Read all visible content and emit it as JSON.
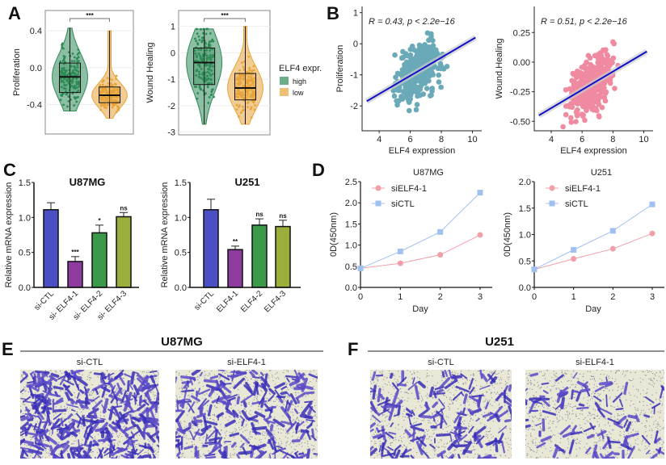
{
  "panel_labels": [
    "A",
    "B",
    "C",
    "D",
    "E",
    "F"
  ],
  "chart_data": [
    {
      "id": "A1",
      "type": "violin-box",
      "ylabel": "Proliferation",
      "yticks": [
        0.4,
        0.0,
        -0.4
      ],
      "ytick_labels": [
        "0.4",
        "0.0",
        "-0.4"
      ],
      "ylim": [
        -0.72,
        0.62
      ],
      "significance": "***",
      "groups": [
        {
          "name": "high",
          "color": "#2e8b57",
          "min": -0.47,
          "q1": -0.27,
          "median": -0.1,
          "q3": 0.05,
          "max": 0.43
        },
        {
          "name": "low",
          "color": "#e8a43a",
          "min": -0.55,
          "q1": -0.38,
          "median": -0.3,
          "q3": -0.21,
          "max": 0.4
        }
      ]
    },
    {
      "id": "A2",
      "type": "violin-box",
      "ylabel": "Wound Healing",
      "yticks": [
        1,
        0,
        -1,
        -2,
        -3
      ],
      "ytick_labels": [
        "1",
        "0",
        "-1",
        "-2",
        "-3"
      ],
      "ylim": [
        -3.1,
        1.6
      ],
      "significance": "***",
      "groups": [
        {
          "name": "high",
          "color": "#2e8b57",
          "min": -2.7,
          "q1": -1.2,
          "median": -0.37,
          "q3": 0.18,
          "max": 0.9
        },
        {
          "name": "low",
          "color": "#e8a43a",
          "min": -2.7,
          "q1": -1.78,
          "median": -1.33,
          "q3": -0.78,
          "max": 1.0
        }
      ],
      "legend": {
        "title": "ELF4 expr.",
        "entries": [
          "high",
          "low"
        ],
        "placement": "right"
      }
    },
    {
      "id": "B1",
      "type": "scatter",
      "xlabel": "ELF4 expression",
      "ylabel": "Proliferation",
      "annotation": "R = 0.43, p < 2.2e−16",
      "color": "#6aaab8",
      "xticks": [
        4,
        6,
        8,
        10
      ],
      "xtick_labels": [
        "4",
        "6",
        "8",
        "10"
      ],
      "yticks": [
        1,
        0,
        -1,
        -2
      ],
      "ytick_labels": [
        "1",
        "0",
        "-1",
        "-2"
      ],
      "xlim": [
        2.9,
        10.6
      ],
      "ylim": [
        -2.8,
        1.2
      ],
      "regression": {
        "x": [
          3.2,
          10.2
        ],
        "y": [
          -1.85,
          0.2
        ],
        "color": "#1010c8"
      }
    },
    {
      "id": "B2",
      "type": "scatter",
      "xlabel": "ELF4 expression",
      "ylabel": "Wound.Healing",
      "annotation": "R = 0.51, p < 2.2e−16",
      "color": "#f08aa0",
      "xticks": [
        4,
        6,
        8,
        10
      ],
      "xtick_labels": [
        "4",
        "6",
        "8",
        "10"
      ],
      "yticks": [
        0.25,
        0.0,
        -0.25,
        -0.5
      ],
      "ytick_labels": [
        "0.25",
        "0.00",
        "-0.25",
        "-0.50"
      ],
      "xlim": [
        2.9,
        10.6
      ],
      "ylim": [
        -0.58,
        0.47
      ],
      "regression": {
        "x": [
          3.2,
          10.2
        ],
        "y": [
          -0.45,
          0.09
        ],
        "color": "#1010c8"
      }
    },
    {
      "id": "C1",
      "type": "bar",
      "title": "U87MG",
      "ylabel": "Relative mRNA expression",
      "ylim": [
        0,
        1.5
      ],
      "yticks": [
        0,
        0.5,
        1.0,
        1.5
      ],
      "ytick_labels": [
        "0.0",
        "0.5",
        "1.0",
        "1.5"
      ],
      "categories": [
        "si-CTL",
        "si- ELF4-1",
        "si- ELF4-2",
        "si- ELF4-3"
      ],
      "values": [
        1.11,
        0.37,
        0.78,
        1.01
      ],
      "errors": [
        0.1,
        0.07,
        0.11,
        0.06
      ],
      "annotations": [
        "",
        "***",
        "*",
        "ns"
      ],
      "colors": [
        "#4b4fc4",
        "#8e3a9e",
        "#3a9a4a",
        "#9aae3c"
      ]
    },
    {
      "id": "C2",
      "type": "bar",
      "title": "U251",
      "ylabel": "Relative mRNA expression",
      "ylim": [
        0,
        1.5
      ],
      "yticks": [
        0,
        0.5,
        1.0,
        1.5
      ],
      "ytick_labels": [
        "0.0",
        "0.5",
        "1.0",
        "1.5"
      ],
      "categories": [
        "si-CTL",
        "ELF4-1",
        "ELF4-2",
        "ELF4-3"
      ],
      "values": [
        1.11,
        0.54,
        0.89,
        0.87
      ],
      "errors": [
        0.15,
        0.05,
        0.09,
        0.09
      ],
      "annotations": [
        "",
        "**",
        "ns",
        "ns"
      ],
      "colors": [
        "#4b4fc4",
        "#8e3a9e",
        "#3a9a4a",
        "#9aae3c"
      ]
    },
    {
      "id": "D1",
      "type": "line",
      "title": "U87MG",
      "xlabel": "Day",
      "ylabel": "0D(450nm)",
      "x": [
        0,
        1,
        2,
        3
      ],
      "xtick_labels": [
        "0",
        "1",
        "2",
        "3"
      ],
      "ylim": [
        0,
        2.5
      ],
      "yticks": [
        0,
        0.5,
        1.0,
        1.5,
        2.0,
        2.5
      ],
      "ytick_labels": [
        "0.0",
        "0.5",
        "1.0",
        "1.5",
        "2.0",
        "2.5"
      ],
      "series": [
        {
          "name": "siELF4-1",
          "marker": "circle",
          "color": "#f0a0a8",
          "values": [
            0.45,
            0.57,
            0.77,
            1.24
          ]
        },
        {
          "name": "siCTL",
          "marker": "square",
          "color": "#a0c0f0",
          "values": [
            0.45,
            0.85,
            1.31,
            2.24
          ]
        }
      ]
    },
    {
      "id": "D2",
      "type": "line",
      "title": "U251",
      "xlabel": "Day",
      "ylabel": "0D(450nm)",
      "x": [
        0,
        1,
        2,
        3
      ],
      "xtick_labels": [
        "0",
        "1",
        "2",
        "3"
      ],
      "ylim": [
        0,
        2.0
      ],
      "yticks": [
        0,
        0.5,
        1.0,
        1.5,
        2.0
      ],
      "ytick_labels": [
        "0.0",
        "0.5",
        "1.0",
        "1.5",
        "2.0"
      ],
      "series": [
        {
          "name": "siELF4-1",
          "marker": "circle",
          "color": "#f0a0a8",
          "values": [
            0.34,
            0.54,
            0.73,
            1.02
          ]
        },
        {
          "name": "siCTL",
          "marker": "square",
          "color": "#a0c0f0",
          "values": [
            0.34,
            0.71,
            1.07,
            1.57
          ]
        }
      ]
    }
  ],
  "transwell": {
    "E": {
      "title": "U87MG",
      "images": [
        {
          "label": "si-CTL",
          "density": 0.95
        },
        {
          "label": "si-ELF4-1",
          "density": 0.6
        }
      ]
    },
    "F": {
      "title": "U251",
      "images": [
        {
          "label": "si-CTL",
          "density": 0.45
        },
        {
          "label": "si-ELF4-1",
          "density": 0.25
        }
      ]
    }
  }
}
